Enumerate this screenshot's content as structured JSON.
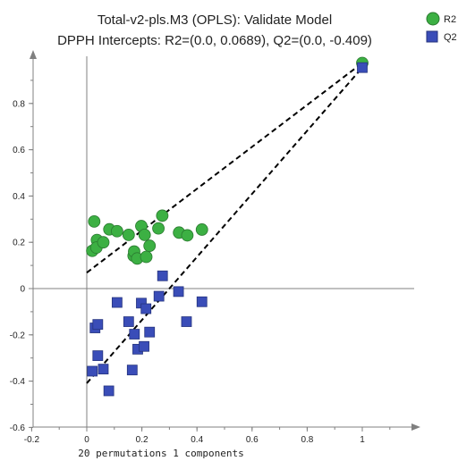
{
  "chart_data": {
    "type": "scatter",
    "title": "Total-v2-pls.M3 (OPLS): Validate Model",
    "subtitle": "DPPH Intercepts: R2=(0.0, 0.0689), Q2=(0.0, -0.409)",
    "xlabel": "20 permutations 1 components",
    "ylabel": "",
    "xlim": [
      -0.2,
      1.2
    ],
    "ylim": [
      -0.6,
      0.98
    ],
    "x_ticks": [
      "-0.2",
      "0",
      "0.2",
      "0.4",
      "0.6",
      "0.8",
      "1"
    ],
    "y_ticks": [
      "-0.6",
      "-0.4",
      "-0.2",
      "0",
      "0.2",
      "0.4",
      "0.6",
      "0.8"
    ],
    "grid": false,
    "legend_position": "top-right",
    "colors": {
      "R2": "#3cb043",
      "Q2": "#3a4db8",
      "regression_line": "#000000",
      "axes": "#808080"
    },
    "series": [
      {
        "name": "R2",
        "marker": "circle",
        "points": [
          [
            1.0,
            0.975
          ],
          [
            0.027,
            0.29
          ],
          [
            0.02,
            0.163
          ],
          [
            0.037,
            0.21
          ],
          [
            0.035,
            0.177
          ],
          [
            0.06,
            0.2
          ],
          [
            0.082,
            0.256
          ],
          [
            0.11,
            0.248
          ],
          [
            0.152,
            0.232
          ],
          [
            0.17,
            0.142
          ],
          [
            0.172,
            0.16
          ],
          [
            0.183,
            0.13
          ],
          [
            0.198,
            0.27
          ],
          [
            0.21,
            0.232
          ],
          [
            0.216,
            0.137
          ],
          [
            0.228,
            0.185
          ],
          [
            0.26,
            0.26
          ],
          [
            0.274,
            0.315
          ],
          [
            0.335,
            0.242
          ],
          [
            0.365,
            0.23
          ],
          [
            0.418,
            0.255
          ]
        ]
      },
      {
        "name": "Q2",
        "marker": "square",
        "points": [
          [
            1.0,
            0.955
          ],
          [
            0.02,
            -0.357
          ],
          [
            0.03,
            -0.17
          ],
          [
            0.04,
            -0.155
          ],
          [
            0.04,
            -0.29
          ],
          [
            0.06,
            -0.348
          ],
          [
            0.08,
            -0.442
          ],
          [
            0.11,
            -0.06
          ],
          [
            0.152,
            -0.143
          ],
          [
            0.165,
            -0.352
          ],
          [
            0.173,
            -0.197
          ],
          [
            0.185,
            -0.262
          ],
          [
            0.198,
            -0.063
          ],
          [
            0.208,
            -0.25
          ],
          [
            0.215,
            -0.087
          ],
          [
            0.228,
            -0.188
          ],
          [
            0.262,
            -0.033
          ],
          [
            0.275,
            0.055
          ],
          [
            0.333,
            -0.013
          ],
          [
            0.362,
            -0.143
          ],
          [
            0.418,
            -0.057
          ]
        ]
      }
    ],
    "regression_lines": [
      {
        "name": "R2",
        "from": [
          0.0,
          0.0689
        ],
        "to": [
          1.0,
          0.975
        ]
      },
      {
        "name": "Q2",
        "from": [
          0.0,
          -0.409
        ],
        "to": [
          1.0,
          0.955
        ]
      }
    ]
  }
}
